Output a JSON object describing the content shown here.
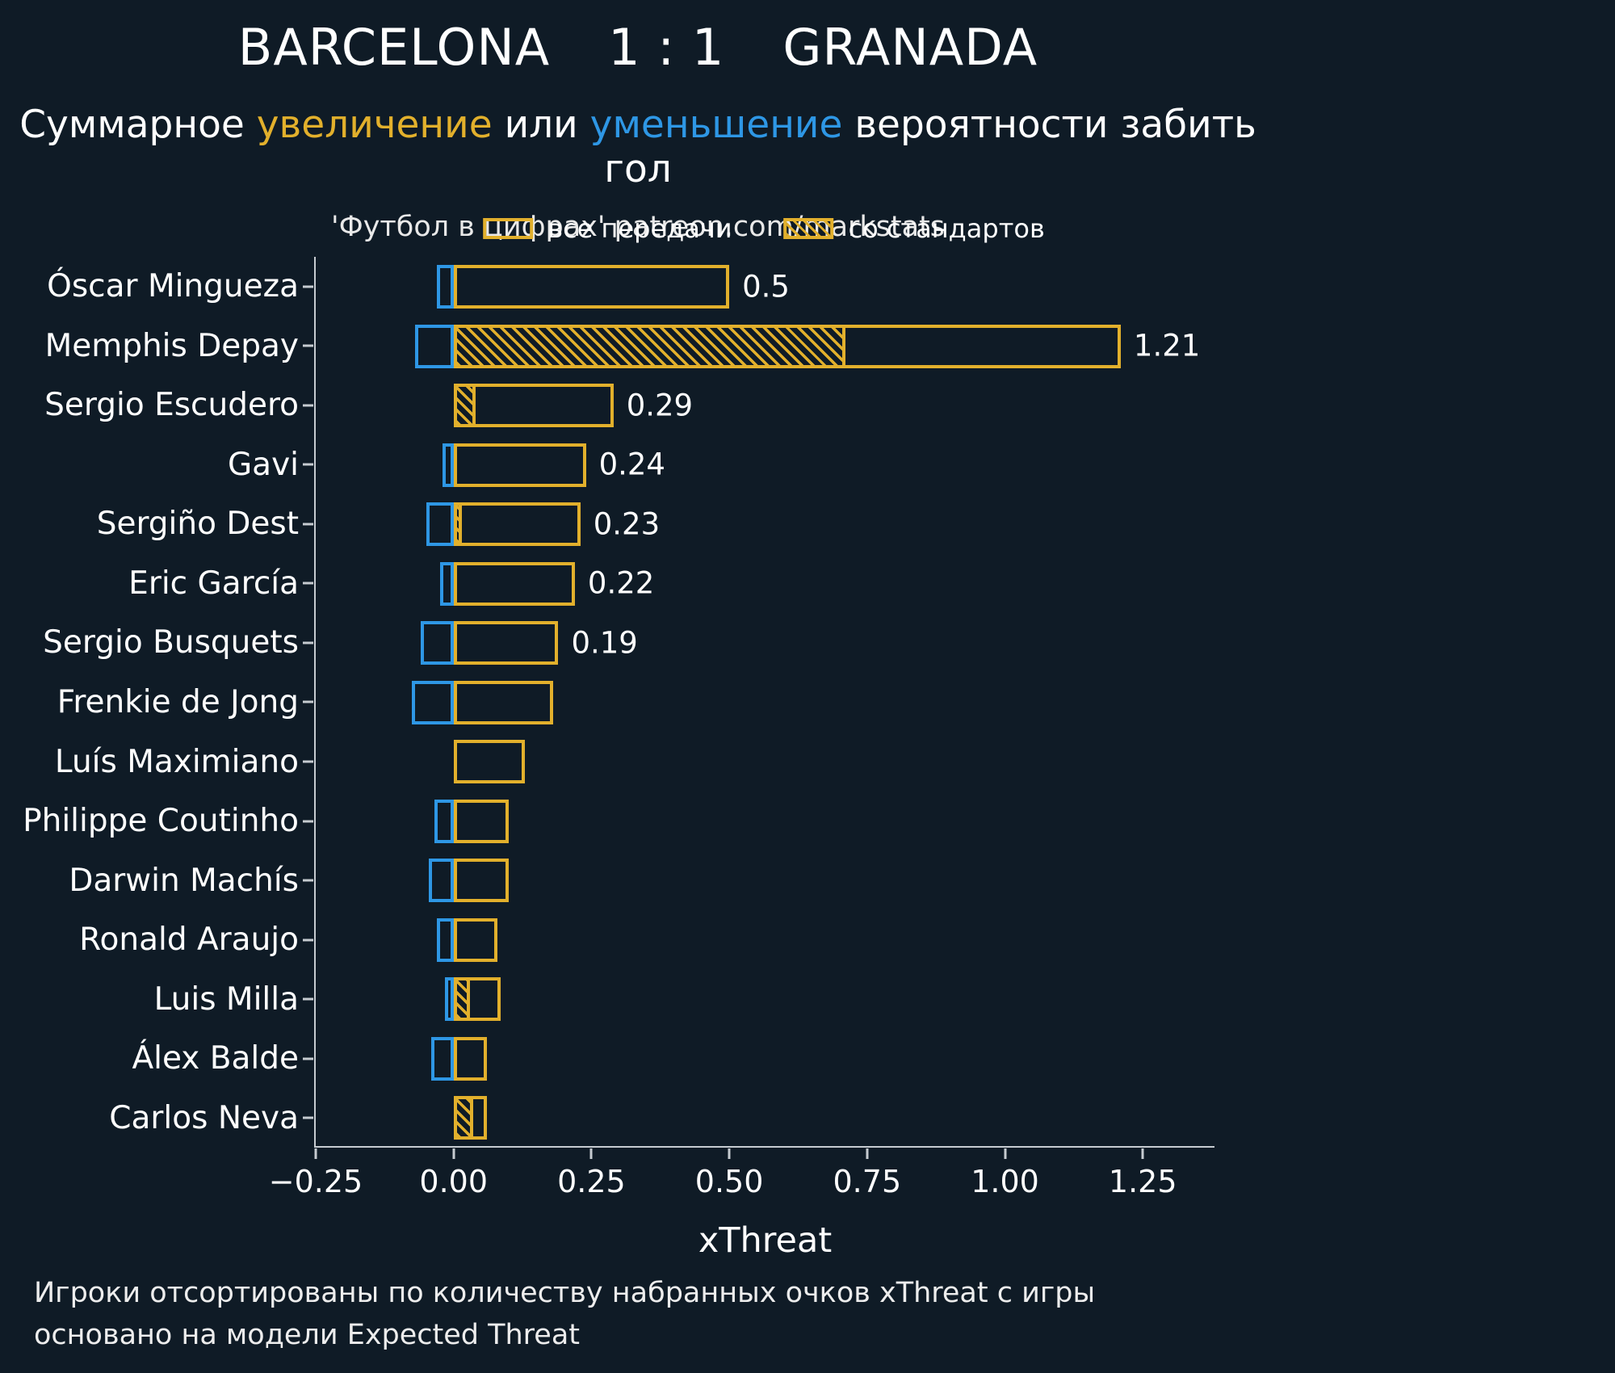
{
  "header": {
    "home_team": "BARCELONA",
    "score": "1 : 1",
    "away_team": "GRANADA",
    "subtitle": {
      "prefix": "Суммарное ",
      "increase": "увеличение",
      "middle": " или ",
      "decrease": "уменьшение",
      "suffix": " вероятности забить гол"
    },
    "source": "'Футбол в цифрах' patreon.com/markstats"
  },
  "colors": {
    "background": "#0f1b26",
    "increase": "#e2b02c",
    "decrease": "#2e97e5",
    "axis": "#c6cbd0",
    "text": "#ffffff"
  },
  "chart_data": {
    "type": "bar",
    "orientation": "horizontal",
    "title": "BARCELONA 1 : 1 GRANADA",
    "subtitle": "Суммарное увеличение или уменьшение вероятности забить гол",
    "xlabel": "xThreat",
    "xlim": [
      -0.25,
      1.38
    ],
    "grid": false,
    "legend_position": "top-center",
    "legend": {
      "all_passes": "все передачи",
      "set_pieces": "со стандартов"
    },
    "xticks": [
      {
        "value": -0.25,
        "label": "−0.25"
      },
      {
        "value": 0.0,
        "label": "0.00"
      },
      {
        "value": 0.25,
        "label": "0.25"
      },
      {
        "value": 0.5,
        "label": "0.50"
      },
      {
        "value": 0.75,
        "label": "0.75"
      },
      {
        "value": 1.0,
        "label": "1.00"
      },
      {
        "value": 1.25,
        "label": "1.25"
      }
    ],
    "players": [
      {
        "name": "Óscar Mingueza",
        "all": 0.5,
        "standards": 0,
        "negative": -0.03,
        "label": "0.5"
      },
      {
        "name": "Memphis Depay",
        "all": 1.21,
        "standards": 0.71,
        "negative": -0.07,
        "label": "1.21"
      },
      {
        "name": "Sergio Escudero",
        "all": 0.29,
        "standards": 0.04,
        "negative": 0,
        "label": "0.29"
      },
      {
        "name": "Gavi",
        "all": 0.24,
        "standards": 0,
        "negative": -0.02,
        "label": "0.24"
      },
      {
        "name": "Sergiño Dest",
        "all": 0.23,
        "standards": 0.015,
        "negative": -0.05,
        "label": "0.23"
      },
      {
        "name": "Eric García",
        "all": 0.22,
        "standards": 0,
        "negative": -0.025,
        "label": "0.22"
      },
      {
        "name": "Sergio Busquets",
        "all": 0.19,
        "standards": 0,
        "negative": -0.06,
        "label": "0.19"
      },
      {
        "name": "Frenkie de Jong",
        "all": 0.18,
        "standards": 0,
        "negative": -0.075,
        "label": ""
      },
      {
        "name": "Luís Maximiano",
        "all": 0.13,
        "standards": 0,
        "negative": 0,
        "label": ""
      },
      {
        "name": "Philippe Coutinho",
        "all": 0.1,
        "standards": 0,
        "negative": -0.035,
        "label": ""
      },
      {
        "name": "Darwin Machís",
        "all": 0.1,
        "standards": 0,
        "negative": -0.045,
        "label": ""
      },
      {
        "name": "Ronald Araujo",
        "all": 0.08,
        "standards": 0,
        "negative": -0.03,
        "label": ""
      },
      {
        "name": "Luis Milla",
        "all": 0.085,
        "standards": 0.03,
        "negative": -0.015,
        "label": ""
      },
      {
        "name": "Álex Balde",
        "all": 0.06,
        "standards": 0,
        "negative": -0.04,
        "label": ""
      },
      {
        "name": "Carlos Neva",
        "all": 0.06,
        "standards": 0.035,
        "negative": 0,
        "label": ""
      }
    ]
  },
  "footer": {
    "line1": "Игроки отсортированы по количеству набранных очков xThreat с игры",
    "line2": "основано на модели Expected Threat"
  }
}
